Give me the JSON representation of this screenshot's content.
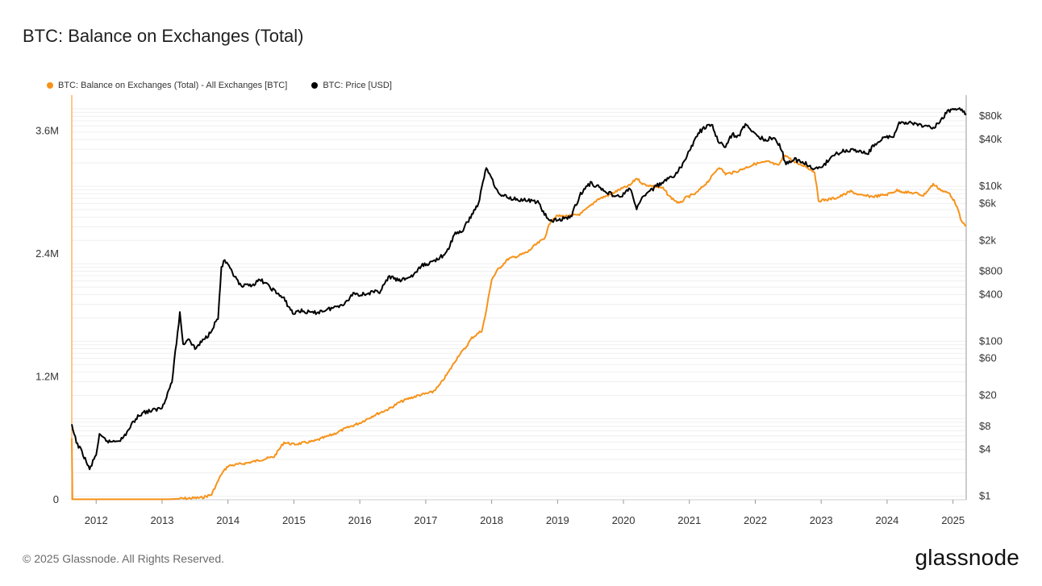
{
  "title": "BTC: Balance on Exchanges (Total)",
  "legend": [
    {
      "label": "BTC: Balance on Exchanges (Total) - All Exchanges [BTC]",
      "color": "#f7931a"
    },
    {
      "label": "BTC: Price [USD]",
      "color": "#000000"
    }
  ],
  "footer": "© 2025 Glassnode. All Rights Reserved.",
  "brand": "glassnode",
  "chart_data": {
    "type": "line",
    "title": "BTC: Balance on Exchanges (Total)",
    "x_ticks": [
      "2012",
      "2013",
      "2014",
      "2015",
      "2016",
      "2017",
      "2018",
      "2019",
      "2020",
      "2021",
      "2022",
      "2023",
      "2024",
      "2025"
    ],
    "left_axis": {
      "ticks": [
        "0",
        "1.2M",
        "2.4M",
        "3.6M"
      ],
      "values": [
        0,
        1200000,
        2400000,
        3600000
      ],
      "range": [
        0,
        3950000
      ]
    },
    "right_axis": {
      "scale": "log",
      "ticks": [
        "$1",
        "$4",
        "$8",
        "$20",
        "$60",
        "$100",
        "$400",
        "$800",
        "$2k",
        "$6k",
        "$10k",
        "$40k",
        "$80k"
      ],
      "values": [
        1,
        4,
        8,
        20,
        60,
        100,
        400,
        800,
        2000,
        6000,
        10000,
        40000,
        80000
      ],
      "range": [
        0.9,
        150000
      ]
    },
    "x_range": [
      2011.63,
      2025.2
    ],
    "series": [
      {
        "name": "BTC: Balance on Exchanges (Total) - All Exchanges [BTC]",
        "axis": "left",
        "color": "#f7931a",
        "points": [
          [
            2011.63,
            600000
          ],
          [
            2011.64,
            5000
          ],
          [
            2012.5,
            5000
          ],
          [
            2013.1,
            5000
          ],
          [
            2013.6,
            20000
          ],
          [
            2013.75,
            50000
          ],
          [
            2013.9,
            250000
          ],
          [
            2014.0,
            330000
          ],
          [
            2014.3,
            360000
          ],
          [
            2014.7,
            420000
          ],
          [
            2014.85,
            560000
          ],
          [
            2015.0,
            540000
          ],
          [
            2015.3,
            570000
          ],
          [
            2015.6,
            640000
          ],
          [
            2015.8,
            700000
          ],
          [
            2016.0,
            750000
          ],
          [
            2016.2,
            820000
          ],
          [
            2016.45,
            890000
          ],
          [
            2016.6,
            950000
          ],
          [
            2016.75,
            990000
          ],
          [
            2016.9,
            1020000
          ],
          [
            2017.1,
            1050000
          ],
          [
            2017.2,
            1110000
          ],
          [
            2017.35,
            1250000
          ],
          [
            2017.5,
            1410000
          ],
          [
            2017.6,
            1480000
          ],
          [
            2017.7,
            1580000
          ],
          [
            2017.85,
            1650000
          ],
          [
            2017.9,
            1780000
          ],
          [
            2018.0,
            2150000
          ],
          [
            2018.1,
            2250000
          ],
          [
            2018.25,
            2350000
          ],
          [
            2018.4,
            2380000
          ],
          [
            2018.55,
            2420000
          ],
          [
            2018.65,
            2480000
          ],
          [
            2018.8,
            2550000
          ],
          [
            2018.9,
            2730000
          ],
          [
            2019.0,
            2770000
          ],
          [
            2019.2,
            2770000
          ],
          [
            2019.35,
            2790000
          ],
          [
            2019.5,
            2870000
          ],
          [
            2019.6,
            2930000
          ],
          [
            2019.8,
            2980000
          ],
          [
            2019.95,
            3030000
          ],
          [
            2020.1,
            3070000
          ],
          [
            2020.2,
            3140000
          ],
          [
            2020.3,
            3080000
          ],
          [
            2020.45,
            3060000
          ],
          [
            2020.6,
            3040000
          ],
          [
            2020.7,
            2960000
          ],
          [
            2020.85,
            2890000
          ],
          [
            2020.95,
            2950000
          ],
          [
            2021.1,
            2990000
          ],
          [
            2021.3,
            3120000
          ],
          [
            2021.45,
            3250000
          ],
          [
            2021.55,
            3180000
          ],
          [
            2021.7,
            3200000
          ],
          [
            2021.85,
            3240000
          ],
          [
            2022.0,
            3280000
          ],
          [
            2022.2,
            3300000
          ],
          [
            2022.35,
            3260000
          ],
          [
            2022.45,
            3370000
          ],
          [
            2022.6,
            3290000
          ],
          [
            2022.75,
            3260000
          ],
          [
            2022.9,
            3200000
          ],
          [
            2022.96,
            2920000
          ],
          [
            2023.1,
            2930000
          ],
          [
            2023.25,
            2950000
          ],
          [
            2023.45,
            3010000
          ],
          [
            2023.6,
            2970000
          ],
          [
            2023.8,
            2960000
          ],
          [
            2024.0,
            2980000
          ],
          [
            2024.15,
            3020000
          ],
          [
            2024.3,
            3000000
          ],
          [
            2024.45,
            2990000
          ],
          [
            2024.55,
            2970000
          ],
          [
            2024.7,
            3080000
          ],
          [
            2024.85,
            3010000
          ],
          [
            2024.95,
            2990000
          ],
          [
            2025.05,
            2880000
          ],
          [
            2025.13,
            2710000
          ],
          [
            2025.2,
            2680000
          ]
        ]
      },
      {
        "name": "BTC: Price [USD]",
        "axis": "right",
        "color": "#000000",
        "points": [
          [
            2011.63,
            8
          ],
          [
            2011.7,
            5
          ],
          [
            2011.8,
            3.5
          ],
          [
            2011.9,
            2.2
          ],
          [
            2012.0,
            3.5
          ],
          [
            2012.05,
            6
          ],
          [
            2012.2,
            5
          ],
          [
            2012.4,
            5.5
          ],
          [
            2012.6,
            10
          ],
          [
            2012.7,
            12
          ],
          [
            2012.9,
            13
          ],
          [
            2013.0,
            14
          ],
          [
            2013.15,
            30
          ],
          [
            2013.27,
            230
          ],
          [
            2013.32,
            90
          ],
          [
            2013.4,
            110
          ],
          [
            2013.5,
            80
          ],
          [
            2013.7,
            120
          ],
          [
            2013.85,
            200
          ],
          [
            2013.9,
            900
          ],
          [
            2013.95,
            1100
          ],
          [
            2014.05,
            800
          ],
          [
            2014.2,
            500
          ],
          [
            2014.4,
            550
          ],
          [
            2014.5,
            620
          ],
          [
            2014.7,
            450
          ],
          [
            2014.85,
            350
          ],
          [
            2015.0,
            220
          ],
          [
            2015.05,
            250
          ],
          [
            2015.3,
            230
          ],
          [
            2015.6,
            270
          ],
          [
            2015.8,
            320
          ],
          [
            2015.9,
            420
          ],
          [
            2016.0,
            400
          ],
          [
            2016.3,
            440
          ],
          [
            2016.45,
            680
          ],
          [
            2016.6,
            600
          ],
          [
            2016.8,
            700
          ],
          [
            2016.95,
            950
          ],
          [
            2017.1,
            1050
          ],
          [
            2017.2,
            1200
          ],
          [
            2017.3,
            1300
          ],
          [
            2017.45,
            2500
          ],
          [
            2017.55,
            2600
          ],
          [
            2017.7,
            4300
          ],
          [
            2017.8,
            6000
          ],
          [
            2017.92,
            17500
          ],
          [
            2018.0,
            13000
          ],
          [
            2018.1,
            8000
          ],
          [
            2018.3,
            7000
          ],
          [
            2018.55,
            6500
          ],
          [
            2018.7,
            6300
          ],
          [
            2018.87,
            3500
          ],
          [
            2019.0,
            3700
          ],
          [
            2019.2,
            4000
          ],
          [
            2019.35,
            8000
          ],
          [
            2019.5,
            11000
          ],
          [
            2019.6,
            10000
          ],
          [
            2019.8,
            8000
          ],
          [
            2019.95,
            7200
          ],
          [
            2020.1,
            9500
          ],
          [
            2020.2,
            5000
          ],
          [
            2020.3,
            7500
          ],
          [
            2020.45,
            9300
          ],
          [
            2020.6,
            11500
          ],
          [
            2020.75,
            13000
          ],
          [
            2020.9,
            19000
          ],
          [
            2021.0,
            29000
          ],
          [
            2021.15,
            50000
          ],
          [
            2021.25,
            58000
          ],
          [
            2021.35,
            60000
          ],
          [
            2021.45,
            36000
          ],
          [
            2021.55,
            33000
          ],
          [
            2021.65,
            47000
          ],
          [
            2021.75,
            43000
          ],
          [
            2021.85,
            65000
          ],
          [
            2022.0,
            46000
          ],
          [
            2022.15,
            40000
          ],
          [
            2022.3,
            42000
          ],
          [
            2022.4,
            30000
          ],
          [
            2022.45,
            20000
          ],
          [
            2022.6,
            22000
          ],
          [
            2022.8,
            19000
          ],
          [
            2022.88,
            16500
          ],
          [
            2023.0,
            17000
          ],
          [
            2023.15,
            24000
          ],
          [
            2023.3,
            28000
          ],
          [
            2023.5,
            30000
          ],
          [
            2023.7,
            26000
          ],
          [
            2023.8,
            34000
          ],
          [
            2023.95,
            42000
          ],
          [
            2024.1,
            45000
          ],
          [
            2024.2,
            68000
          ],
          [
            2024.4,
            64000
          ],
          [
            2024.55,
            60000
          ],
          [
            2024.7,
            58000
          ],
          [
            2024.8,
            65000
          ],
          [
            2024.9,
            90000
          ],
          [
            2025.0,
            98000
          ],
          [
            2025.1,
            100000
          ],
          [
            2025.2,
            86000
          ]
        ]
      }
    ]
  }
}
